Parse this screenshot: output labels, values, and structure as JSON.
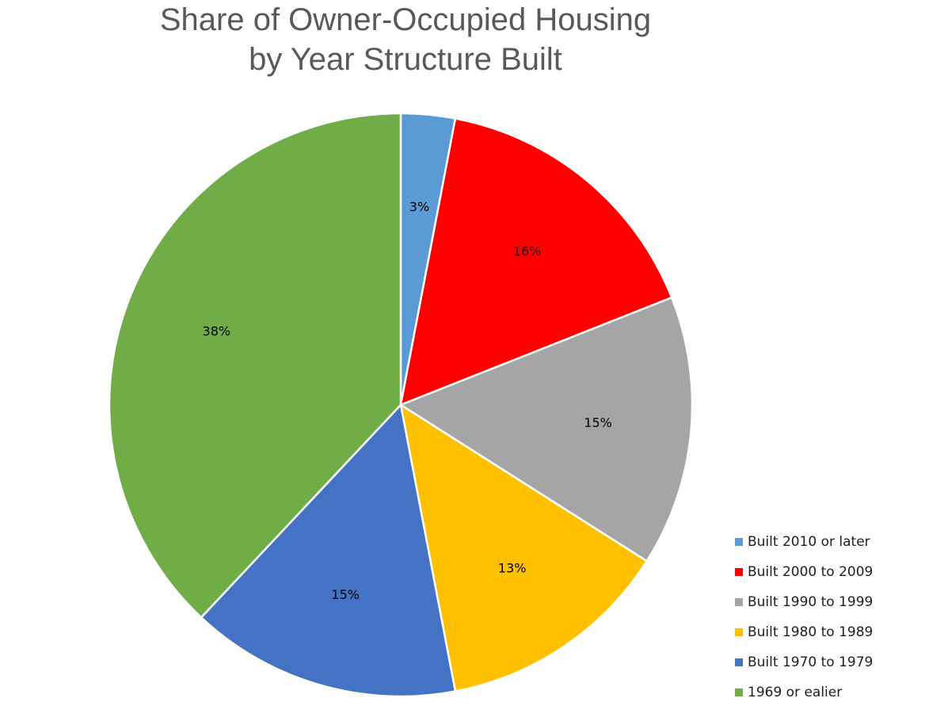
{
  "chart_data": {
    "type": "pie",
    "title_lines": [
      "Share of Owner-Occupied Housing",
      "by Year Structure Built"
    ],
    "legend_position": "bottom-right",
    "slices": [
      {
        "name": "Built 2010 or later",
        "value": 3,
        "label": "3%",
        "color": "#5B9BD5"
      },
      {
        "name": "Built 2000 to 2009",
        "value": 16,
        "label": "16%",
        "color": "#FF0000"
      },
      {
        "name": "Built 1990 to 1999",
        "value": 15,
        "label": "15%",
        "color": "#A5A5A5"
      },
      {
        "name": "Built 1980 to 1989",
        "value": 13,
        "label": "13%",
        "color": "#FFC000"
      },
      {
        "name": "Built 1970 to 1979",
        "value": 15,
        "label": "15%",
        "color": "#4472C4"
      },
      {
        "name": "1969 or ealier",
        "value": 38,
        "label": "38%",
        "color": "#70AD47"
      }
    ]
  }
}
